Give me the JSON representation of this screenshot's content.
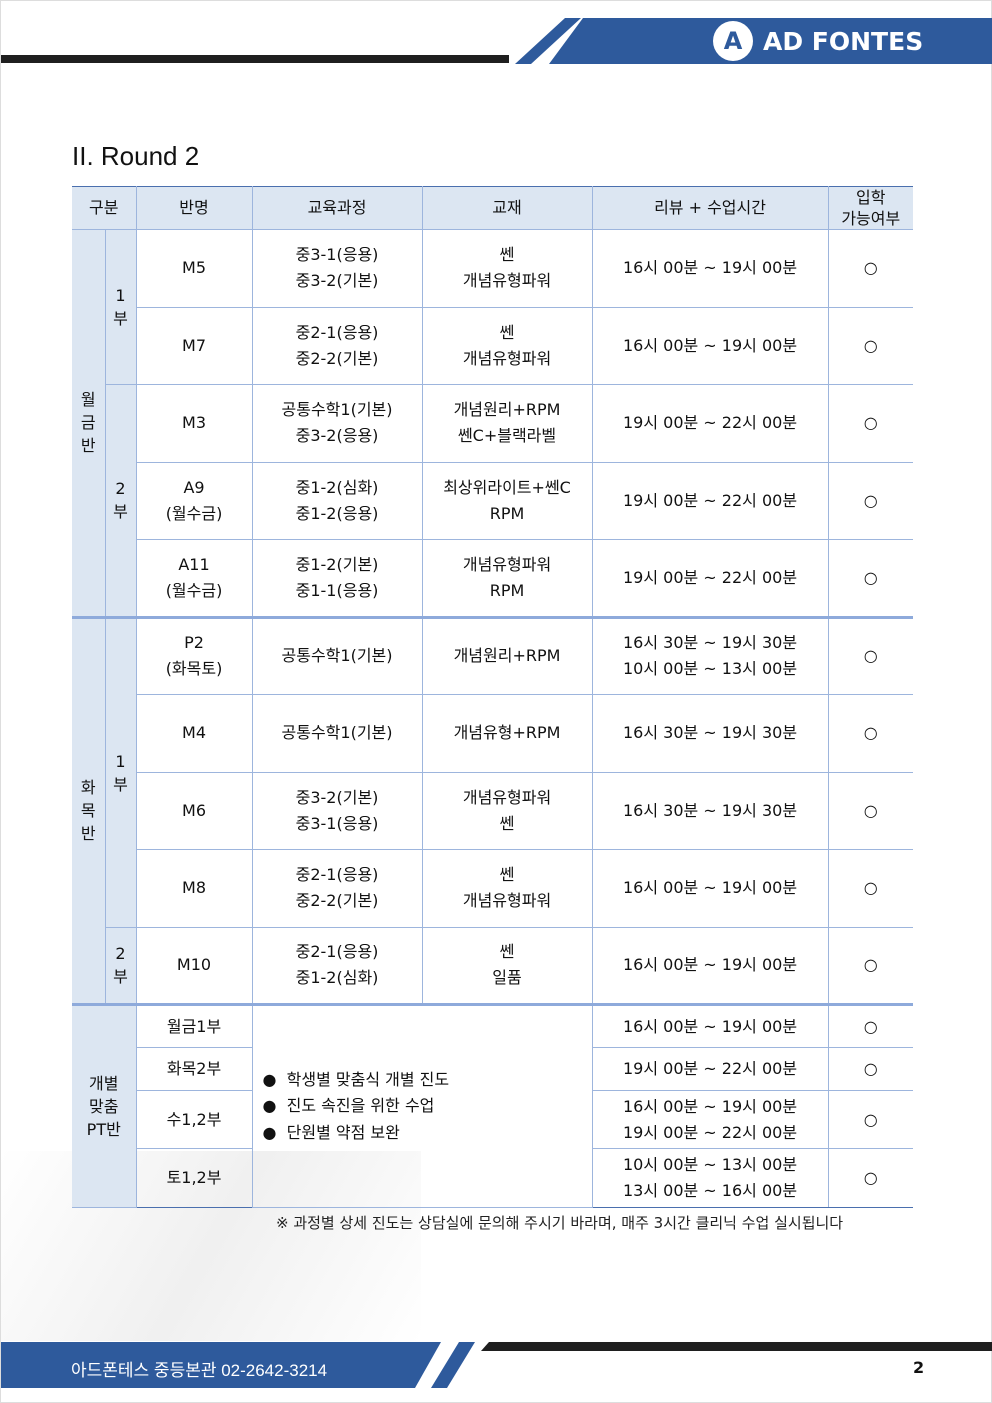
{
  "header": {
    "logo_text": "AD FONTES",
    "logo_mark": "A"
  },
  "title": "II. Round 2",
  "table": {
    "headers": [
      "구분",
      "반명",
      "교육과정",
      "교재",
      "리뷰 + 수업시간",
      "입학\n가능여부"
    ],
    "groups": [
      {
        "label": "월\n금\n반",
        "parts": [
          "1\n부",
          "2\n부"
        ]
      },
      {
        "label": "화\n목\n반",
        "parts": [
          "1\n부",
          "2\n부"
        ]
      },
      {
        "label": "개별\n맞춤\nPT반"
      }
    ],
    "rows": [
      {
        "class": "M5",
        "course": "중3-1(응용)\n중3-2(기본)",
        "book": "쎈\n개념유형파워",
        "time": "16시 00분 ~ 19시 00분",
        "avail": "○"
      },
      {
        "class": "M7",
        "course": "중2-1(응용)\n중2-2(기본)",
        "book": "쎈\n개념유형파워",
        "time": "16시 00분 ~ 19시 00분",
        "avail": "○"
      },
      {
        "class": "M3",
        "course": "공통수학1(기본)\n중3-2(응용)",
        "book": "개념원리+RPM\n쎈C+블랙라벨",
        "time": "19시 00분 ~ 22시 00분",
        "avail": "○"
      },
      {
        "class": "A9\n(월수금)",
        "course": "중1-2(심화)\n중1-2(응용)",
        "book": "최상위라이트+쎈C\nRPM",
        "time": "19시 00분 ~ 22시 00분",
        "avail": "○"
      },
      {
        "class": "A11\n(월수금)",
        "course": "중1-2(기본)\n중1-1(응용)",
        "book": "개념유형파워\nRPM",
        "time": "19시 00분 ~ 22시 00분",
        "avail": "○"
      },
      {
        "class": "P2\n(화목토)",
        "course": "공통수학1(기본)",
        "book": "개념원리+RPM",
        "time": "16시 30분 ~ 19시 30분\n10시 00분 ~ 13시 00분",
        "avail": "○"
      },
      {
        "class": "M4",
        "course": "공통수학1(기본)",
        "book": "개념유형+RPM",
        "time": "16시 30분 ~ 19시 30분",
        "avail": "○"
      },
      {
        "class": "M6",
        "course": "중3-2(기본)\n중3-1(응용)",
        "book": "개념유형파워\n쎈",
        "time": "16시 30분 ~ 19시 30분",
        "avail": "○"
      },
      {
        "class": "M8",
        "course": "중2-1(응용)\n중2-2(기본)",
        "book": "쎈\n개념유형파워",
        "time": "16시 00분 ~ 19시 00분",
        "avail": "○"
      },
      {
        "class": "M10",
        "course": "중2-1(응용)\n중1-2(심화)",
        "book": "쎈\n일품",
        "time": "16시 00분 ~ 19시 00분",
        "avail": "○"
      }
    ],
    "pt_rows": [
      {
        "class": "월금1부",
        "time": "16시 00분 ~ 19시 00분",
        "avail": "○"
      },
      {
        "class": "화목2부",
        "time": "19시 00분 ~ 22시 00분",
        "avail": "○"
      },
      {
        "class": "수1,2부",
        "time": "16시 00분 ~ 19시 00분\n19시 00분 ~ 22시 00분",
        "avail": "○"
      },
      {
        "class": "토1,2부",
        "time": "10시 00분 ~ 13시 00분\n13시 00분 ~ 16시 00분",
        "avail": "○"
      }
    ],
    "pt_bullets": [
      "학생별 맞춤식 개별 진도",
      "진도 속진을 위한 수업",
      "단원별 약점 보완"
    ]
  },
  "note": "※ 과정별 상세 진도는 상담실에 문의해 주시기 바라며, 매주 3시간 클리닉 수업 실시됩니다",
  "footer": {
    "text": "아드폰테스 중등본관 02-2642-3214",
    "page": "2"
  },
  "colors": {
    "brand_blue": "#2e5a9c",
    "header_bg": "#dce6f2",
    "border": "#9db5dd"
  }
}
